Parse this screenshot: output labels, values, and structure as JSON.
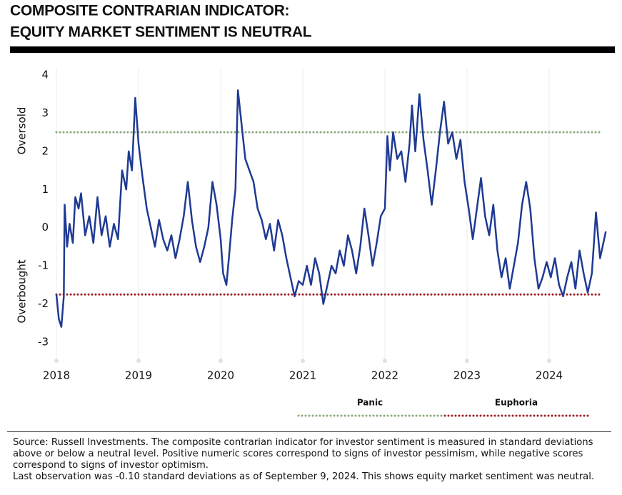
{
  "chart_data": {
    "type": "line",
    "title": "COMPOSITE CONTRARIAN INDICATOR:",
    "subtitle": "EQUITY MARKET SENTIMENT IS NEUTRAL",
    "y_axis_labels": {
      "top": "Oversold",
      "bottom": "Overbought"
    },
    "xlim": [
      2017.98,
      2024.75
    ],
    "xticks": [
      2018,
      2019,
      2020,
      2021,
      2022,
      2023,
      2024
    ],
    "ylim": [
      -3.4,
      4
    ],
    "yticks": [
      -3,
      -2,
      -1,
      0,
      1,
      2,
      3,
      4
    ],
    "grid": true,
    "reference_lines": [
      {
        "name": "Panic",
        "value": 2.5,
        "color": "#8aa87a"
      },
      {
        "name": "Euphoria",
        "value": -1.75,
        "color": "#9b1c24"
      }
    ],
    "x": [
      2018.0,
      2018.03,
      2018.06,
      2018.09,
      2018.1,
      2018.13,
      2018.16,
      2018.2,
      2018.23,
      2018.27,
      2018.3,
      2018.35,
      2018.4,
      2018.45,
      2018.5,
      2018.55,
      2018.6,
      2018.65,
      2018.7,
      2018.75,
      2018.8,
      2018.85,
      2018.88,
      2018.92,
      2018.96,
      2019.0,
      2019.05,
      2019.1,
      2019.15,
      2019.2,
      2019.25,
      2019.3,
      2019.35,
      2019.4,
      2019.45,
      2019.5,
      2019.55,
      2019.6,
      2019.65,
      2019.7,
      2019.75,
      2019.8,
      2019.85,
      2019.9,
      2019.95,
      2020.0,
      2020.03,
      2020.07,
      2020.1,
      2020.14,
      2020.18,
      2020.21,
      2020.25,
      2020.3,
      2020.35,
      2020.4,
      2020.45,
      2020.5,
      2020.55,
      2020.6,
      2020.65,
      2020.7,
      2020.75,
      2020.8,
      2020.85,
      2020.9,
      2020.95,
      2021.0,
      2021.05,
      2021.1,
      2021.15,
      2021.2,
      2021.25,
      2021.3,
      2021.35,
      2021.4,
      2021.45,
      2021.5,
      2021.55,
      2021.6,
      2021.65,
      2021.7,
      2021.75,
      2021.8,
      2021.85,
      2021.9,
      2021.95,
      2022.0,
      2022.03,
      2022.06,
      2022.1,
      2022.15,
      2022.2,
      2022.25,
      2022.3,
      2022.33,
      2022.37,
      2022.42,
      2022.47,
      2022.52,
      2022.57,
      2022.62,
      2022.67,
      2022.72,
      2022.77,
      2022.82,
      2022.87,
      2022.92,
      2022.97,
      2023.02,
      2023.07,
      2023.12,
      2023.17,
      2023.22,
      2023.27,
      2023.32,
      2023.37,
      2023.42,
      2023.47,
      2023.52,
      2023.57,
      2023.62,
      2023.67,
      2023.72,
      2023.77,
      2023.82,
      2023.87,
      2023.92,
      2023.97,
      2024.02,
      2024.07,
      2024.12,
      2024.17,
      2024.22,
      2024.27,
      2024.32,
      2024.37,
      2024.42,
      2024.47,
      2024.52,
      2024.57,
      2024.62,
      2024.69
    ],
    "series": [
      {
        "color": "#1f3a93",
        "values": [
          -1.75,
          -2.4,
          -2.6,
          -1.8,
          0.6,
          -0.5,
          0.1,
          -0.4,
          0.8,
          0.5,
          0.9,
          -0.2,
          0.3,
          -0.4,
          0.8,
          -0.2,
          0.3,
          -0.5,
          0.1,
          -0.3,
          1.5,
          1.0,
          2.0,
          1.5,
          3.4,
          2.2,
          1.3,
          0.5,
          0.0,
          -0.5,
          0.2,
          -0.3,
          -0.6,
          -0.2,
          -0.8,
          -0.3,
          0.3,
          1.2,
          0.2,
          -0.5,
          -0.9,
          -0.5,
          0.0,
          1.2,
          0.6,
          -0.3,
          -1.2,
          -1.5,
          -0.8,
          0.2,
          1.0,
          3.6,
          2.8,
          1.8,
          1.5,
          1.2,
          0.5,
          0.2,
          -0.3,
          0.1,
          -0.6,
          0.2,
          -0.2,
          -0.8,
          -1.3,
          -1.8,
          -1.4,
          -1.5,
          -1.0,
          -1.5,
          -0.8,
          -1.2,
          -2.0,
          -1.5,
          -1.0,
          -1.2,
          -0.6,
          -1.0,
          -0.2,
          -0.6,
          -1.2,
          -0.5,
          0.5,
          -0.2,
          -1.0,
          -0.4,
          0.3,
          0.5,
          2.4,
          1.5,
          2.5,
          1.8,
          2.0,
          1.2,
          2.2,
          3.2,
          2.0,
          3.5,
          2.3,
          1.5,
          0.6,
          1.5,
          2.5,
          3.3,
          2.2,
          2.5,
          1.8,
          2.3,
          1.2,
          0.5,
          -0.3,
          0.5,
          1.3,
          0.3,
          -0.2,
          0.6,
          -0.6,
          -1.3,
          -0.8,
          -1.6,
          -1.0,
          -0.4,
          0.6,
          1.2,
          0.5,
          -0.8,
          -1.6,
          -1.3,
          -0.9,
          -1.3,
          -0.8,
          -1.5,
          -1.8,
          -1.3,
          -0.9,
          -1.6,
          -0.6,
          -1.2,
          -1.7,
          -1.2,
          0.4,
          -0.8,
          -0.1
        ]
      }
    ],
    "notes": [
      "Source: Russell Investments. The composite contrarian indicator for investor sentiment is measured in standard deviations above or below a neutral level. Positive numeric scores correspond to signs of investor pessimism, while negative scores correspond to signs of investor optimism.",
      "Last observation was -0.10 standard deviations as of September 9, 2024. This shows equity market sentiment was neutral."
    ]
  }
}
